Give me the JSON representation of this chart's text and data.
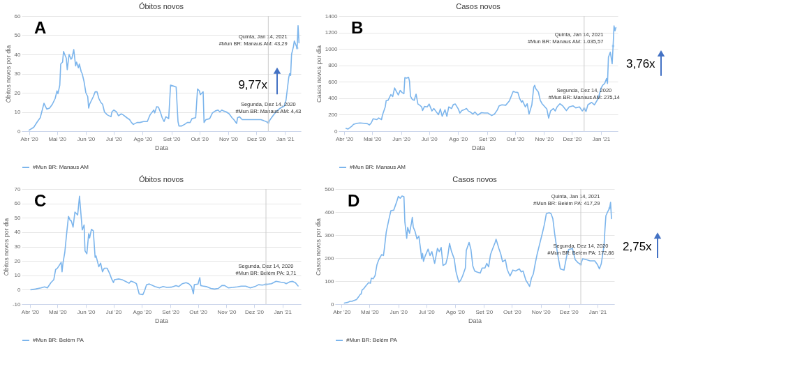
{
  "chart_data": [
    {
      "type": "line",
      "title": "Óbitos novos",
      "xlabel": "Data",
      "ylabel": "Óbitos novos por dia",
      "legend": "bottom",
      "grid": "y",
      "xlim": [
        "2020-03-24",
        "2021-01-18"
      ],
      "xticks": [
        {
          "value": "2020-04-01",
          "label": "Abr '20"
        },
        {
          "value": "2020-05-01",
          "label": "Mai '20"
        },
        {
          "value": "2020-06-01",
          "label": "Jun '20"
        },
        {
          "value": "2020-07-01",
          "label": "Jul '20"
        },
        {
          "value": "2020-08-01",
          "label": "Ago '20"
        },
        {
          "value": "2020-09-01",
          "label": "Set '20"
        },
        {
          "value": "2020-10-01",
          "label": "Out '20"
        },
        {
          "value": "2020-11-01",
          "label": "Nov '20"
        },
        {
          "value": "2020-12-01",
          "label": "Dez '20"
        },
        {
          "value": "2021-01-01",
          "label": "Jan '21"
        }
      ],
      "ylim": [
        0,
        60
      ],
      "yticks": [
        0,
        10,
        20,
        30,
        40,
        50,
        60
      ],
      "ref_lines": [
        {
          "axis": "x",
          "value": "2020-12-14",
          "color": "#cccccc"
        }
      ],
      "annotations": [
        "A",
        "9,77x",
        {
          "text": "Segunda, Dez 14, 2020\n#Mun BR: Manaus AM: 4,43",
          "x": "2020-12-14",
          "y": 4.43
        },
        {
          "text": "Quinta, Jan 14, 2021\n#Mun BR: Manaus AM: 43,29",
          "x": "2021-01-14",
          "y": 43.29
        }
      ],
      "series": [
        {
          "name": "#Mun BR: Manaus AM",
          "color": "#7cb5ec",
          "x": [
            "2020-04-01",
            "2020-04-06",
            "2020-04-10",
            "2020-04-13",
            "2020-04-17",
            "2020-04-20",
            "2020-04-23",
            "2020-04-26",
            "2020-04-29",
            "2020-05-01",
            "2020-05-02",
            "2020-05-04",
            "2020-05-05",
            "2020-05-07",
            "2020-05-08",
            "2020-05-11",
            "2020-05-12",
            "2020-05-14",
            "2020-05-16",
            "2020-05-17",
            "2020-05-19",
            "2020-05-21",
            "2020-05-22",
            "2020-05-24",
            "2020-05-25",
            "2020-05-27",
            "2020-05-28",
            "2020-05-30",
            "2020-06-01",
            "2020-06-03",
            "2020-06-04",
            "2020-06-05",
            "2020-06-07",
            "2020-06-09",
            "2020-06-11",
            "2020-06-13",
            "2020-06-15",
            "2020-06-17",
            "2020-06-19",
            "2020-06-21",
            "2020-06-24",
            "2020-06-28",
            "2020-06-29",
            "2020-07-01",
            "2020-07-04",
            "2020-07-06",
            "2020-07-09",
            "2020-07-11",
            "2020-07-15",
            "2020-07-18",
            "2020-07-20",
            "2020-07-22",
            "2020-07-26",
            "2020-07-29",
            "2020-08-02",
            "2020-08-06",
            "2020-08-09",
            "2020-08-13",
            "2020-08-14",
            "2020-08-16",
            "2020-08-18",
            "2020-08-20",
            "2020-08-22",
            "2020-08-24",
            "2020-08-26",
            "2020-08-29",
            "2020-08-31",
            "2020-09-03",
            "2020-09-06",
            "2020-09-08",
            "2020-09-09",
            "2020-09-12",
            "2020-09-15",
            "2020-09-18",
            "2020-09-21",
            "2020-09-23",
            "2020-09-27",
            "2020-09-29",
            "2020-10-01",
            "2020-10-02",
            "2020-10-05",
            "2020-10-06",
            "2020-10-08",
            "2020-10-12",
            "2020-10-15",
            "2020-10-18",
            "2020-10-21",
            "2020-10-23",
            "2020-10-25",
            "2020-10-27",
            "2020-10-30",
            "2020-11-02",
            "2020-11-05",
            "2020-11-07",
            "2020-11-10",
            "2020-11-11",
            "2020-11-13",
            "2020-11-16",
            "2020-12-02",
            "2020-12-06",
            "2020-12-09",
            "2020-12-14",
            "2020-12-16",
            "2020-12-19",
            "2020-12-23",
            "2020-12-27",
            "2020-12-31",
            "2021-01-02",
            "2021-01-03",
            "2021-01-05",
            "2021-01-06",
            "2021-01-07",
            "2021-01-08",
            "2021-01-10",
            "2021-01-11",
            "2021-01-14",
            "2021-01-15",
            "2021-01-16"
          ],
          "values": [
            0.5,
            2,
            5,
            7,
            14.5,
            11.5,
            12,
            14,
            17,
            21,
            19.5,
            24,
            35,
            36,
            41.5,
            38,
            32,
            40,
            37.5,
            38,
            42.5,
            34,
            36,
            33,
            35,
            31,
            30,
            26,
            20,
            18,
            12,
            14,
            16,
            18,
            20.5,
            20.5,
            17,
            15,
            14,
            10,
            8.5,
            7.5,
            10,
            11,
            10,
            8,
            9,
            8.5,
            7,
            6,
            4.5,
            3.5,
            4.5,
            4.5,
            5,
            5,
            8.5,
            11,
            9.5,
            12.7,
            12.5,
            10,
            7,
            5,
            7.5,
            6.5,
            24,
            23.5,
            23,
            5,
            2.7,
            2.7,
            3.5,
            4.5,
            4.5,
            6.5,
            7,
            22,
            21,
            19,
            20.5,
            4.5,
            6,
            6.5,
            9.5,
            10.5,
            11,
            10,
            11,
            10.5,
            10,
            9,
            7,
            6,
            4,
            7,
            7.5,
            6,
            6,
            6,
            5.5,
            4.43,
            6,
            8,
            10.5,
            12,
            13,
            16,
            20,
            28,
            30,
            29,
            40,
            44,
            47,
            43.29,
            55,
            46
          ]
        }
      ]
    },
    {
      "type": "line",
      "title": "Casos novos",
      "xlabel": "Data",
      "ylabel": "Casos novos por dia",
      "legend": "bottom",
      "grid": "y",
      "xlim": [
        "2020-03-26",
        "2021-01-19"
      ],
      "xticks": [
        {
          "value": "2020-04-01",
          "label": "Abr '20"
        },
        {
          "value": "2020-05-01",
          "label": "Mai '20"
        },
        {
          "value": "2020-06-01",
          "label": "Jun '20"
        },
        {
          "value": "2020-07-01",
          "label": "Jul '20"
        },
        {
          "value": "2020-08-01",
          "label": "Ago '20"
        },
        {
          "value": "2020-09-01",
          "label": "Set '20"
        },
        {
          "value": "2020-10-01",
          "label": "Out '20"
        },
        {
          "value": "2020-11-01",
          "label": "Nov '20"
        },
        {
          "value": "2020-12-01",
          "label": "Dez '20"
        },
        {
          "value": "2021-01-01",
          "label": "Jan '21"
        }
      ],
      "ylim": [
        0,
        1400
      ],
      "yticks": [
        0,
        200,
        400,
        600,
        800,
        1000,
        1200,
        1400
      ],
      "ref_lines": [
        {
          "axis": "x",
          "value": "2020-12-14",
          "color": "#cccccc"
        }
      ],
      "annotations": [
        "B",
        "3,76x",
        {
          "text": "Segunda, Dez 14, 2020\n#Mun BR: Manaus AM: 275,14",
          "x": "2020-12-14",
          "y": 275.14
        },
        {
          "text": "Quinta, Jan 14, 2021\n#Mun BR: Manaus AM: 1.035,57",
          "x": "2021-01-14",
          "y": 1035.57
        }
      ],
      "series": [
        {
          "name": "#Mun BR: Manaus AM",
          "color": "#7cb5ec",
          "x": [
            "2020-04-03",
            "2020-04-05",
            "2020-04-09",
            "2020-04-11",
            "2020-04-15",
            "2020-04-18",
            "2020-04-22",
            "2020-04-26",
            "2020-04-28",
            "2020-04-30",
            "2020-05-02",
            "2020-05-06",
            "2020-05-08",
            "2020-05-11",
            "2020-05-12",
            "2020-05-15",
            "2020-05-16",
            "2020-05-18",
            "2020-05-21",
            "2020-05-23",
            "2020-05-25",
            "2020-05-27",
            "2020-05-29",
            "2020-05-31",
            "2020-06-02",
            "2020-06-04",
            "2020-06-05",
            "2020-06-07",
            "2020-06-09",
            "2020-06-10",
            "2020-06-11",
            "2020-06-13",
            "2020-06-15",
            "2020-06-17",
            "2020-06-19",
            "2020-06-21",
            "2020-06-23",
            "2020-06-24",
            "2020-06-26",
            "2020-06-29",
            "2020-07-01",
            "2020-07-04",
            "2020-07-06",
            "2020-07-08",
            "2020-07-11",
            "2020-07-13",
            "2020-07-15",
            "2020-07-18",
            "2020-07-20",
            "2020-07-22",
            "2020-07-25",
            "2020-07-27",
            "2020-07-29",
            "2020-08-01",
            "2020-08-03",
            "2020-08-05",
            "2020-08-07",
            "2020-08-10",
            "2020-08-12",
            "2020-08-14",
            "2020-08-17",
            "2020-08-19",
            "2020-08-22",
            "2020-08-26",
            "2020-08-29",
            "2020-09-02",
            "2020-09-06",
            "2020-09-09",
            "2020-09-12",
            "2020-09-14",
            "2020-09-17",
            "2020-09-21",
            "2020-09-25",
            "2020-09-29",
            "2020-10-01",
            "2020-10-04",
            "2020-10-06",
            "2020-10-08",
            "2020-10-09",
            "2020-10-12",
            "2020-10-14",
            "2020-10-16",
            "2020-10-19",
            "2020-10-21",
            "2020-10-22",
            "2020-10-23",
            "2020-10-26",
            "2020-10-28",
            "2020-10-30",
            "2020-11-02",
            "2020-11-04",
            "2020-11-06",
            "2020-11-08",
            "2020-11-11",
            "2020-11-13",
            "2020-11-15",
            "2020-11-18",
            "2020-11-21",
            "2020-11-25",
            "2020-11-28",
            "2020-12-02",
            "2020-12-05",
            "2020-12-09",
            "2020-12-12",
            "2020-12-14",
            "2020-12-16",
            "2020-12-18",
            "2020-12-22",
            "2020-12-25",
            "2020-12-29",
            "2021-01-01",
            "2021-01-03",
            "2021-01-05",
            "2021-01-07",
            "2021-01-08",
            "2021-01-09",
            "2021-01-11",
            "2021-01-13",
            "2021-01-14",
            "2021-01-15",
            "2021-01-16",
            "2021-01-17"
          ],
          "values": [
            33,
            25,
            58,
            83,
            95,
            100,
            95,
            90,
            75,
            100,
            150,
            140,
            160,
            140,
            195,
            295,
            370,
            375,
            445,
            420,
            525,
            480,
            440,
            495,
            470,
            455,
            650,
            645,
            655,
            605,
            425,
            385,
            375,
            450,
            330,
            315,
            295,
            250,
            300,
            295,
            330,
            245,
            275,
            245,
            200,
            270,
            180,
            260,
            180,
            295,
            275,
            325,
            330,
            275,
            220,
            250,
            258,
            275,
            245,
            233,
            208,
            233,
            195,
            225,
            220,
            220,
            190,
            208,
            258,
            308,
            320,
            315,
            370,
            483,
            475,
            470,
            395,
            350,
            370,
            295,
            333,
            208,
            320,
            533,
            558,
            520,
            475,
            375,
            333,
            295,
            270,
            158,
            245,
            275,
            245,
            295,
            333,
            308,
            250,
            295,
            308,
            283,
            295,
            245,
            275.14,
            240,
            320,
            350,
            320,
            395,
            520,
            560,
            580,
            640,
            580,
            900,
            960,
            820,
            1035.57,
            1280,
            1220,
            1260
          ]
        }
      ]
    },
    {
      "type": "line",
      "title": "Óbitos novos",
      "xlabel": "Data",
      "ylabel": "Óbitos novos por dia",
      "legend": "bottom",
      "grid": "y",
      "xlim": [
        "2020-03-23",
        "2021-01-21"
      ],
      "xticks": [
        {
          "value": "2020-04-01",
          "label": "Abr '20"
        },
        {
          "value": "2020-05-01",
          "label": "Mai '20"
        },
        {
          "value": "2020-06-01",
          "label": "Jun '20"
        },
        {
          "value": "2020-07-01",
          "label": "Jul '20"
        },
        {
          "value": "2020-08-01",
          "label": "Ago '20"
        },
        {
          "value": "2020-09-01",
          "label": "Set '20"
        },
        {
          "value": "2020-10-01",
          "label": "Out '20"
        },
        {
          "value": "2020-11-01",
          "label": "Nov '20"
        },
        {
          "value": "2020-12-01",
          "label": "Dez '20"
        },
        {
          "value": "2021-01-01",
          "label": "Jan '21"
        }
      ],
      "ylim": [
        -10,
        70
      ],
      "yticks": [
        -10,
        0,
        10,
        20,
        30,
        40,
        50,
        60,
        70
      ],
      "ref_lines": [
        {
          "axis": "x",
          "value": "2020-12-14",
          "color": "#cccccc"
        }
      ],
      "annotations": [
        "C",
        {
          "text": "Segunda, Dez 14, 2020\n#Mun BR: Belém PA: 3,71",
          "x": "2020-12-14",
          "y": 3.71
        }
      ],
      "series": [
        {
          "name": "#Mun BR: Belém PA",
          "color": "#7cb5ec",
          "x": [
            "2020-04-02",
            "2020-04-07",
            "2020-04-13",
            "2020-04-17",
            "2020-04-20",
            "2020-04-24",
            "2020-04-27",
            "2020-04-29",
            "2020-05-01",
            "2020-05-03",
            "2020-05-05",
            "2020-05-06",
            "2020-05-07",
            "2020-05-09",
            "2020-05-11",
            "2020-05-13",
            "2020-05-15",
            "2020-05-16",
            "2020-05-18",
            "2020-05-20",
            "2020-05-23",
            "2020-05-25",
            "2020-05-26",
            "2020-05-28",
            "2020-05-30",
            "2020-05-31",
            "2020-06-02",
            "2020-06-04",
            "2020-06-05",
            "2020-06-07",
            "2020-06-09",
            "2020-06-11",
            "2020-06-12",
            "2020-06-15",
            "2020-06-17",
            "2020-06-19",
            "2020-06-21",
            "2020-06-24",
            "2020-06-27",
            "2020-06-29",
            "2020-07-01",
            "2020-07-02",
            "2020-07-07",
            "2020-07-11",
            "2020-07-15",
            "2020-07-18",
            "2020-07-20",
            "2020-07-24",
            "2020-07-26",
            "2020-07-29",
            "2020-08-02",
            "2020-08-04",
            "2020-08-06",
            "2020-08-09",
            "2020-08-15",
            "2020-08-20",
            "2020-08-24",
            "2020-08-28",
            "2020-09-02",
            "2020-09-07",
            "2020-09-10",
            "2020-09-14",
            "2020-09-18",
            "2020-09-21",
            "2020-09-24",
            "2020-09-26",
            "2020-09-27",
            "2020-10-01",
            "2020-10-03",
            "2020-10-04",
            "2020-10-06",
            "2020-10-10",
            "2020-10-15",
            "2020-10-19",
            "2020-10-23",
            "2020-10-27",
            "2020-10-30",
            "2020-11-03",
            "2020-11-08",
            "2020-11-13",
            "2020-11-17",
            "2020-11-22",
            "2020-11-27",
            "2020-12-02",
            "2020-12-06",
            "2020-12-10",
            "2020-12-14",
            "2020-12-20",
            "2020-12-25",
            "2020-12-30",
            "2021-01-03",
            "2021-01-05",
            "2021-01-09",
            "2021-01-12",
            "2021-01-15",
            "2021-01-18"
          ],
          "values": [
            0,
            0.5,
            1.3,
            2,
            1.3,
            5,
            7,
            14,
            15,
            17,
            19,
            12.5,
            18.5,
            26,
            39,
            51,
            48,
            48,
            43.5,
            54,
            52,
            65,
            57,
            41.5,
            45,
            27,
            25,
            39,
            36,
            42,
            41,
            22.5,
            23.5,
            16,
            18.5,
            12.5,
            15,
            15,
            11,
            7.5,
            5,
            7,
            7.5,
            6.8,
            5.5,
            4.5,
            6,
            5,
            4.2,
            -3,
            -3.4,
            -0.4,
            3.5,
            4,
            2.2,
            1.3,
            2.2,
            1.6,
            1.8,
            2.9,
            2.2,
            4.2,
            4.9,
            4.2,
            2.2,
            -2.8,
            3.5,
            3.9,
            8.4,
            2.9,
            2.6,
            2.2,
            0.9,
            0.5,
            0.9,
            2.9,
            2.9,
            1.3,
            1.6,
            2,
            2.5,
            2.5,
            1.3,
            2.2,
            3.5,
            3.2,
            3.71,
            4.2,
            5.9,
            5.3,
            4.9,
            4.2,
            5.5,
            5.8,
            4.9,
            2.6
          ]
        }
      ]
    },
    {
      "type": "line",
      "title": "Casos novos",
      "xlabel": "Data",
      "ylabel": "Casos novos por dia",
      "legend": "bottom",
      "grid": "y",
      "xlim": [
        "2020-03-25",
        "2021-01-19"
      ],
      "xticks": [
        {
          "value": "2020-04-01",
          "label": "Abr '20"
        },
        {
          "value": "2020-05-01",
          "label": "Mai '20"
        },
        {
          "value": "2020-06-01",
          "label": "Jun '20"
        },
        {
          "value": "2020-07-01",
          "label": "Jul '20"
        },
        {
          "value": "2020-08-01",
          "label": "Ago '20"
        },
        {
          "value": "2020-09-01",
          "label": "Set '20"
        },
        {
          "value": "2020-10-01",
          "label": "Out '20"
        },
        {
          "value": "2020-11-01",
          "label": "Nov '20"
        },
        {
          "value": "2020-12-01",
          "label": "Dez '20"
        },
        {
          "value": "2021-01-01",
          "label": "Jan '21"
        }
      ],
      "ylim": [
        0,
        500
      ],
      "yticks": [
        0,
        100,
        200,
        300,
        400,
        500
      ],
      "ref_lines": [
        {
          "axis": "x",
          "value": "2020-12-14",
          "color": "#cccccc"
        }
      ],
      "annotations": [
        "D",
        "2,75x",
        {
          "text": "Segunda, Dez 14, 2020\n#Mun BR: Belém PA: 172,86",
          "x": "2020-12-14",
          "y": 172.86
        },
        {
          "text": "Quinta, Jan 14, 2021\n#Mun BR: Belém PA: 417,29",
          "x": "2021-01-14",
          "y": 417.29
        }
      ],
      "series": [
        {
          "name": "#Mun BR: Belém PA",
          "color": "#7cb5ec",
          "x": [
            "2020-04-04",
            "2020-04-08",
            "2020-04-10",
            "2020-04-12",
            "2020-04-15",
            "2020-04-17",
            "2020-04-19",
            "2020-04-21",
            "2020-04-22",
            "2020-04-23",
            "2020-04-25",
            "2020-04-27",
            "2020-04-30",
            "2020-05-02",
            "2020-05-03",
            "2020-05-05",
            "2020-05-07",
            "2020-05-09",
            "2020-05-11",
            "2020-05-14",
            "2020-05-16",
            "2020-05-17",
            "2020-05-19",
            "2020-05-22",
            "2020-05-24",
            "2020-05-27",
            "2020-05-30",
            "2020-06-01",
            "2020-06-03",
            "2020-06-05",
            "2020-06-07",
            "2020-06-08",
            "2020-06-10",
            "2020-06-11",
            "2020-06-13",
            "2020-06-15",
            "2020-06-16",
            "2020-06-17",
            "2020-06-19",
            "2020-06-21",
            "2020-06-23",
            "2020-06-25",
            "2020-06-26",
            "2020-06-27",
            "2020-06-28",
            "2020-06-30",
            "2020-07-03",
            "2020-07-05",
            "2020-07-07",
            "2020-07-10",
            "2020-07-13",
            "2020-07-15",
            "2020-07-17",
            "2020-07-19",
            "2020-07-22",
            "2020-07-24",
            "2020-07-26",
            "2020-07-28",
            "2020-07-31",
            "2020-08-02",
            "2020-08-05",
            "2020-08-07",
            "2020-08-09",
            "2020-08-12",
            "2020-08-13",
            "2020-08-16",
            "2020-08-18",
            "2020-08-20",
            "2020-08-22",
            "2020-08-24",
            "2020-08-28",
            "2020-08-30",
            "2020-09-02",
            "2020-09-04",
            "2020-09-06",
            "2020-09-08",
            "2020-09-10",
            "2020-09-13",
            "2020-09-14",
            "2020-09-17",
            "2020-09-19",
            "2020-09-21",
            "2020-09-24",
            "2020-09-26",
            "2020-09-29",
            "2020-10-02",
            "2020-10-05",
            "2020-10-09",
            "2020-10-11",
            "2020-10-13",
            "2020-10-16",
            "2020-10-18",
            "2020-10-20",
            "2020-10-22",
            "2020-10-24",
            "2020-10-26",
            "2020-10-28",
            "2020-10-31",
            "2020-11-03",
            "2020-11-05",
            "2020-11-07",
            "2020-11-10",
            "2020-11-12",
            "2020-11-14",
            "2020-11-16",
            "2020-11-19",
            "2020-11-22",
            "2020-11-26",
            "2020-11-29",
            "2020-12-01",
            "2020-12-05",
            "2020-12-08",
            "2020-12-11",
            "2020-12-14",
            "2020-12-16",
            "2020-12-20",
            "2020-12-24",
            "2020-12-29",
            "2021-01-01",
            "2021-01-03",
            "2021-01-05",
            "2021-01-08",
            "2021-01-09",
            "2021-01-10",
            "2021-01-12",
            "2021-01-14",
            "2021-01-15",
            "2021-01-16"
          ],
          "values": [
            4.5,
            8,
            12,
            12,
            17,
            20,
            30,
            42,
            44,
            61,
            68,
            79,
            93,
            91,
            113,
            110,
            124,
            171,
            193,
            215,
            211,
            242,
            313,
            371,
            406,
            408,
            442,
            468,
            460,
            470,
            467,
            357,
            286,
            333,
            308,
            351,
            377,
            335,
            315,
            283,
            295,
            236,
            197,
            220,
            186,
            211,
            239,
            211,
            228,
            177,
            242,
            228,
            246,
            168,
            175,
            206,
            264,
            230,
            197,
            140,
            95,
            104,
            122,
            157,
            233,
            268,
            237,
            166,
            144,
            140,
            135,
            157,
            157,
            177,
            162,
            215,
            237,
            268,
            282,
            242,
            218,
            184,
            193,
            150,
            122,
            148,
            144,
            153,
            140,
            144,
            104,
            91,
            77,
            113,
            131,
            175,
            215,
            264,
            313,
            348,
            393,
            397,
            393,
            371,
            304,
            220,
            153,
            148,
            211,
            237,
            242,
            193,
            180,
            172.86,
            197,
            193,
            188,
            188,
            171,
            153,
            175,
            255,
            326,
            384,
            402,
            417.29,
            442,
            371
          ]
        }
      ]
    }
  ]
}
